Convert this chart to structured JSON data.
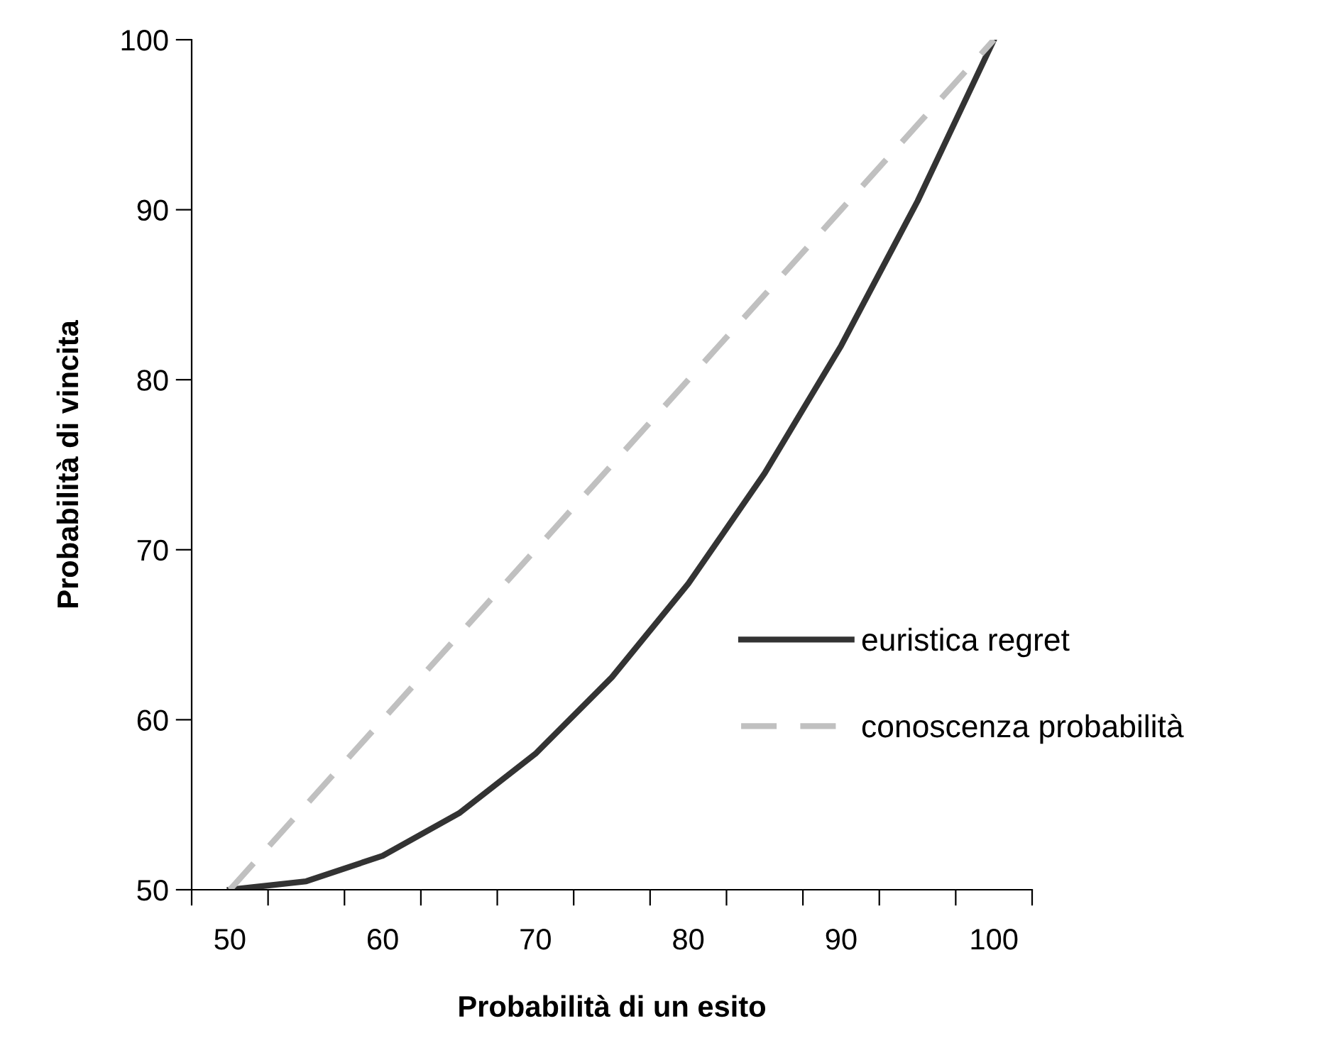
{
  "chart_data": {
    "type": "line",
    "xlabel": "Probabilità di un esito",
    "ylabel": "Probabilità di vincita",
    "categories": [
      "50",
      null,
      "60",
      null,
      "70",
      null,
      "80",
      null,
      "90",
      null,
      "100"
    ],
    "series": [
      {
        "name": "euristica regret",
        "color": "#333333",
        "line_style": "solid",
        "values": [
          50,
          50.5,
          52,
          54.5,
          58,
          62.5,
          68,
          74.5,
          82,
          90.5,
          100
        ]
      },
      {
        "name": "conoscenza probabilità",
        "color": "#c0c0c0",
        "line_style": "dashed",
        "values": [
          50,
          55,
          60,
          65,
          70,
          75,
          80,
          85,
          90,
          95,
          100
        ]
      }
    ],
    "ylim": [
      50,
      100
    ],
    "yticks": [
      50,
      60,
      70,
      80,
      90,
      100
    ],
    "grid": false,
    "legend": "right",
    "marker": "none"
  }
}
